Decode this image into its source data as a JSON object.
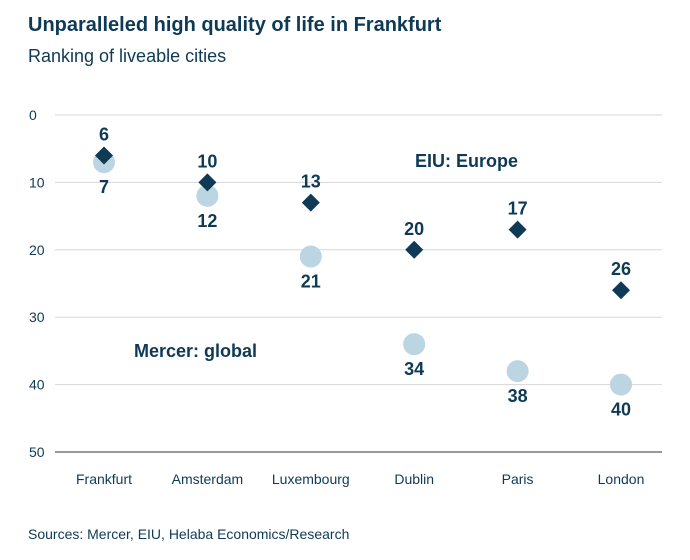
{
  "header": {
    "title": "Unparalleled high quality of life in Frankfurt",
    "subtitle": "Ranking of liveable cities"
  },
  "footer": {
    "source": "Sources: Mercer, EIU, Helaba Economics/Research"
  },
  "colors": {
    "eiu": "#0e3a55",
    "mercer": "#bcd5e3",
    "grid": "#d7d7d7",
    "text": "#0e3a55",
    "mercer_label": "#bcd5e3"
  },
  "chart_data": {
    "type": "scatter",
    "title": "Unparalleled high quality of life in Frankfurt",
    "subtitle": "Ranking of liveable cities",
    "categories": [
      "Frankfurt",
      "Amsterdam",
      "Luxembourg",
      "Dublin",
      "Paris",
      "London"
    ],
    "ylim": [
      0,
      50
    ],
    "y_inverted": true,
    "yticks": [
      0,
      10,
      20,
      30,
      40,
      50
    ],
    "grid": true,
    "series": [
      {
        "name": "EIU: Europe",
        "marker": "diamond",
        "values": [
          6,
          10,
          13,
          20,
          17,
          26
        ]
      },
      {
        "name": "Mercer: global",
        "marker": "circle",
        "values": [
          7,
          12,
          21,
          34,
          38,
          40
        ]
      }
    ]
  }
}
